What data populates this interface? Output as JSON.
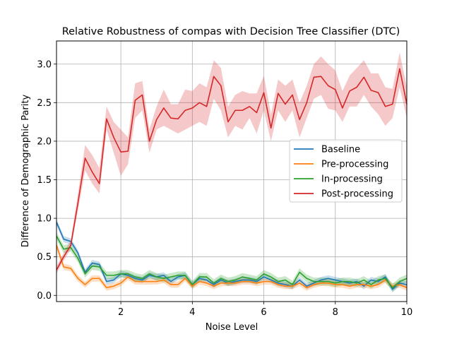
{
  "chart_data": {
    "type": "line",
    "title": "Relative Robustness of compas with Decision Tree Classifier (DTC)",
    "xlabel": "Noise Level",
    "ylabel": "Difference of Demographic Parity",
    "xlim": [
      0.2,
      10
    ],
    "ylim": [
      -0.08,
      3.3
    ],
    "xticks": [
      2,
      4,
      6,
      8,
      10
    ],
    "yticks": [
      0.0,
      0.5,
      1.0,
      1.5,
      2.0,
      2.5,
      3.0
    ],
    "grid": true,
    "legend_position": "center-right",
    "x": [
      0.2,
      0.4,
      0.6,
      0.8,
      1.0,
      1.2,
      1.4,
      1.6,
      1.8,
      2.0,
      2.2,
      2.4,
      2.6,
      2.8,
      3.0,
      3.2,
      3.4,
      3.6,
      3.8,
      4.0,
      4.2,
      4.4,
      4.6,
      4.8,
      5.0,
      5.2,
      5.4,
      5.6,
      5.8,
      6.0,
      6.2,
      6.4,
      6.6,
      6.8,
      7.0,
      7.2,
      7.4,
      7.6,
      7.8,
      8.0,
      8.2,
      8.4,
      8.6,
      8.8,
      9.0,
      9.2,
      9.4,
      9.6,
      9.8,
      10.0
    ],
    "series": [
      {
        "name": "Baseline",
        "color": "#1f77b4",
        "values": [
          0.95,
          0.73,
          0.7,
          0.55,
          0.3,
          0.42,
          0.4,
          0.18,
          0.2,
          0.28,
          0.26,
          0.22,
          0.2,
          0.26,
          0.24,
          0.26,
          0.18,
          0.24,
          0.26,
          0.14,
          0.22,
          0.2,
          0.14,
          0.2,
          0.16,
          0.18,
          0.2,
          0.2,
          0.18,
          0.24,
          0.2,
          0.16,
          0.14,
          0.12,
          0.2,
          0.12,
          0.16,
          0.2,
          0.22,
          0.2,
          0.18,
          0.16,
          0.18,
          0.12,
          0.2,
          0.18,
          0.24,
          0.08,
          0.16,
          0.14
        ],
        "band": [
          0.04,
          0.04,
          0.04,
          0.04,
          0.04,
          0.04,
          0.04,
          0.04,
          0.04,
          0.04,
          0.04,
          0.04,
          0.04,
          0.04,
          0.04,
          0.04,
          0.04,
          0.04,
          0.04,
          0.04,
          0.04,
          0.04,
          0.04,
          0.04,
          0.04,
          0.04,
          0.04,
          0.04,
          0.04,
          0.04,
          0.04,
          0.04,
          0.04,
          0.04,
          0.04,
          0.04,
          0.04,
          0.04,
          0.04,
          0.04,
          0.04,
          0.04,
          0.04,
          0.04,
          0.04,
          0.04,
          0.04,
          0.04,
          0.04,
          0.04
        ]
      },
      {
        "name": "Pre-processing",
        "color": "#ff7f0e",
        "values": [
          0.65,
          0.37,
          0.35,
          0.22,
          0.14,
          0.22,
          0.22,
          0.1,
          0.12,
          0.16,
          0.24,
          0.18,
          0.18,
          0.18,
          0.18,
          0.2,
          0.14,
          0.14,
          0.22,
          0.12,
          0.18,
          0.16,
          0.12,
          0.16,
          0.16,
          0.16,
          0.18,
          0.18,
          0.16,
          0.18,
          0.18,
          0.14,
          0.12,
          0.12,
          0.16,
          0.1,
          0.14,
          0.16,
          0.16,
          0.14,
          0.14,
          0.12,
          0.14,
          0.14,
          0.12,
          0.14,
          0.2,
          0.12,
          0.14,
          0.1
        ],
        "band": [
          0.05,
          0.04,
          0.04,
          0.04,
          0.04,
          0.04,
          0.04,
          0.04,
          0.04,
          0.04,
          0.04,
          0.04,
          0.04,
          0.04,
          0.04,
          0.04,
          0.04,
          0.04,
          0.04,
          0.04,
          0.04,
          0.04,
          0.04,
          0.04,
          0.04,
          0.04,
          0.04,
          0.04,
          0.04,
          0.04,
          0.04,
          0.04,
          0.04,
          0.04,
          0.04,
          0.04,
          0.04,
          0.04,
          0.04,
          0.04,
          0.04,
          0.04,
          0.04,
          0.04,
          0.04,
          0.04,
          0.04,
          0.04,
          0.04,
          0.04
        ]
      },
      {
        "name": "In-processing",
        "color": "#2ca02c",
        "values": [
          0.77,
          0.6,
          0.62,
          0.48,
          0.28,
          0.38,
          0.37,
          0.26,
          0.26,
          0.28,
          0.28,
          0.24,
          0.22,
          0.28,
          0.24,
          0.22,
          0.24,
          0.26,
          0.26,
          0.14,
          0.24,
          0.24,
          0.16,
          0.22,
          0.18,
          0.2,
          0.24,
          0.22,
          0.2,
          0.28,
          0.24,
          0.18,
          0.2,
          0.14,
          0.3,
          0.22,
          0.18,
          0.18,
          0.18,
          0.16,
          0.18,
          0.18,
          0.16,
          0.2,
          0.14,
          0.2,
          0.22,
          0.1,
          0.18,
          0.22
        ],
        "band": [
          0.05,
          0.05,
          0.05,
          0.05,
          0.05,
          0.05,
          0.05,
          0.05,
          0.05,
          0.05,
          0.05,
          0.05,
          0.05,
          0.05,
          0.05,
          0.05,
          0.05,
          0.05,
          0.05,
          0.05,
          0.05,
          0.05,
          0.05,
          0.05,
          0.05,
          0.05,
          0.05,
          0.05,
          0.05,
          0.05,
          0.05,
          0.05,
          0.05,
          0.05,
          0.05,
          0.05,
          0.05,
          0.05,
          0.05,
          0.05,
          0.05,
          0.05,
          0.05,
          0.05,
          0.05,
          0.05,
          0.05,
          0.05,
          0.05,
          0.05
        ]
      },
      {
        "name": "Post-processing",
        "color": "#d62728",
        "values": [
          0.33,
          0.5,
          0.65,
          1.2,
          1.78,
          1.6,
          1.45,
          2.29,
          2.05,
          1.86,
          1.87,
          2.53,
          2.6,
          2.0,
          2.28,
          2.43,
          2.3,
          2.29,
          2.4,
          2.43,
          2.5,
          2.45,
          2.84,
          2.72,
          2.25,
          2.4,
          2.4,
          2.45,
          2.37,
          2.63,
          2.17,
          2.62,
          2.48,
          2.6,
          2.28,
          2.5,
          2.83,
          2.84,
          2.72,
          2.67,
          2.43,
          2.65,
          2.7,
          2.83,
          2.66,
          2.63,
          2.45,
          2.48,
          2.94,
          2.48
        ],
        "lower": [
          0.28,
          0.45,
          0.6,
          1.1,
          1.62,
          1.45,
          1.32,
          2.15,
          1.85,
          1.55,
          1.7,
          2.3,
          2.4,
          1.85,
          2.15,
          2.2,
          2.15,
          2.1,
          2.15,
          2.2,
          2.25,
          2.2,
          2.55,
          2.4,
          2.05,
          2.2,
          2.15,
          2.3,
          2.1,
          2.4,
          2.0,
          2.4,
          2.25,
          2.4,
          2.05,
          2.3,
          2.55,
          2.6,
          2.42,
          2.4,
          2.25,
          2.45,
          2.45,
          2.6,
          2.45,
          2.35,
          2.2,
          2.3,
          2.7,
          2.3
        ],
        "upper": [
          0.38,
          0.55,
          0.72,
          1.32,
          1.95,
          1.82,
          1.65,
          2.45,
          2.25,
          2.15,
          2.05,
          2.75,
          2.78,
          2.15,
          2.45,
          2.67,
          2.48,
          2.48,
          2.67,
          2.65,
          2.75,
          2.7,
          3.05,
          2.95,
          2.45,
          2.6,
          2.65,
          2.62,
          2.62,
          2.85,
          2.35,
          2.8,
          2.72,
          2.8,
          2.5,
          2.72,
          3.0,
          3.1,
          3.0,
          2.92,
          2.65,
          2.85,
          2.95,
          3.05,
          2.88,
          2.88,
          2.7,
          2.68,
          3.15,
          2.7
        ]
      }
    ]
  }
}
